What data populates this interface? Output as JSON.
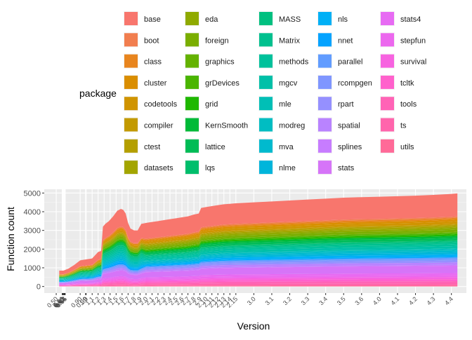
{
  "chart_data": {
    "type": "area",
    "stacked": true,
    "xlabel": "Version",
    "ylabel": "Function count",
    "ylim": [
      0,
      5200
    ],
    "yticks": [
      0,
      1000,
      2000,
      3000,
      4000,
      5000
    ],
    "grid": true,
    "legend": {
      "title": "package",
      "placement": "top",
      "columns": 5,
      "entries": [
        "base",
        "boot",
        "class",
        "cluster",
        "codetools",
        "compiler",
        "ctest",
        "datasets",
        "eda",
        "foreign",
        "graphics",
        "grDevices",
        "grid",
        "KernSmooth",
        "lattice",
        "lqs",
        "MASS",
        "Matrix",
        "methods",
        "mgcv",
        "mle",
        "modreg",
        "mva",
        "nlme",
        "nls",
        "nnet",
        "parallel",
        "rcompgen",
        "rpart",
        "spatial",
        "splines",
        "stats",
        "stats4",
        "stepfun",
        "survival",
        "tcltk",
        "tools",
        "ts",
        "utils"
      ],
      "colors": [
        "#F8766D",
        "#F17E4F",
        "#E8851E",
        "#DA8E00",
        "#D09400",
        "#C39A00",
        "#B49F00",
        "#A3A500",
        "#8FAA00",
        "#7AAE00",
        "#64B200",
        "#4AB500",
        "#1FB800",
        "#00BA38",
        "#00BC56",
        "#00BE6C",
        "#00C080",
        "#00C08E",
        "#00C19B",
        "#00C0A8",
        "#00BFB6",
        "#00BDC2",
        "#00BACE",
        "#00B5DB",
        "#00B0F6",
        "#05A3FF",
        "#619CFF",
        "#7F96FF",
        "#9590FF",
        "#B983FF",
        "#C77CFF",
        "#D674F8",
        "#E76BF3",
        "#EC68EE",
        "#F763E0",
        "#FF61CC",
        "#FF63B6",
        "#FF65AC",
        "#FF6A98"
      ]
    },
    "x_labels": [
      "0.50",
      "0.60",
      "0.61",
      "0.62",
      "0.63",
      "0.64",
      "0.65",
      "0.90",
      "0.99",
      "1.0",
      "1.1",
      "1.2",
      "1.3",
      "1.4",
      "1.5",
      "1.6",
      "1.7",
      "1.8",
      "1.9",
      "2.0",
      "2.1",
      "2.2",
      "2.3",
      "2.4",
      "2.5",
      "2.6",
      "2.7",
      "2.8",
      "2.9",
      "2.10",
      "2.11",
      "2.12",
      "2.13",
      "2.14",
      "2.15",
      "3.0",
      "3.1",
      "3.2",
      "3.3",
      "3.4",
      "3.5",
      "3.6",
      "4.0",
      "4.1",
      "4.2",
      "4.3",
      "4.4"
    ],
    "x_positions": [
      0.5,
      0.6,
      0.61,
      0.62,
      0.63,
      0.64,
      0.65,
      0.9,
      0.99,
      1.0,
      1.1,
      1.2,
      1.3,
      1.4,
      1.5,
      1.6,
      1.7,
      1.8,
      1.9,
      2.0,
      2.1,
      2.2,
      2.3,
      2.4,
      2.5,
      2.6,
      2.7,
      2.8,
      2.9,
      3.0,
      3.1,
      3.2,
      3.3,
      3.4,
      3.5,
      3.8,
      4.1,
      4.4,
      4.7,
      5.0,
      5.3,
      5.6,
      5.9,
      6.2,
      6.5,
      6.8,
      7.1
    ],
    "series_totals": {
      "x": [
        0.55,
        0.62,
        0.7,
        0.8,
        0.9,
        1.0,
        1.1,
        1.2,
        1.25,
        1.28,
        1.32,
        1.38,
        1.45,
        1.52,
        1.58,
        1.62,
        1.66,
        1.7,
        1.74,
        1.8,
        1.86,
        1.92,
        2.0,
        2.1,
        2.2,
        2.3,
        2.4,
        2.5,
        2.6,
        2.7,
        2.8,
        2.88,
        2.92,
        3.0,
        3.1,
        3.2,
        3.3,
        3.4,
        3.5,
        3.8,
        4.1,
        4.4,
        4.7,
        5.0,
        5.3,
        5.6,
        5.9,
        6.2,
        6.5,
        6.8,
        7.1,
        7.2
      ],
      "total": [
        850,
        850,
        950,
        1150,
        1400,
        1450,
        1500,
        1850,
        1900,
        3200,
        3350,
        3500,
        3750,
        4050,
        4150,
        4100,
        3900,
        3400,
        3100,
        3000,
        3000,
        3350,
        3400,
        3450,
        3500,
        3550,
        3600,
        3650,
        3700,
        3750,
        3850,
        3900,
        4200,
        4250,
        4300,
        4350,
        4400,
        4420,
        4450,
        4500,
        4550,
        4600,
        4650,
        4700,
        4750,
        4780,
        4800,
        4830,
        4860,
        4900,
        4950,
        4980
      ]
    }
  }
}
